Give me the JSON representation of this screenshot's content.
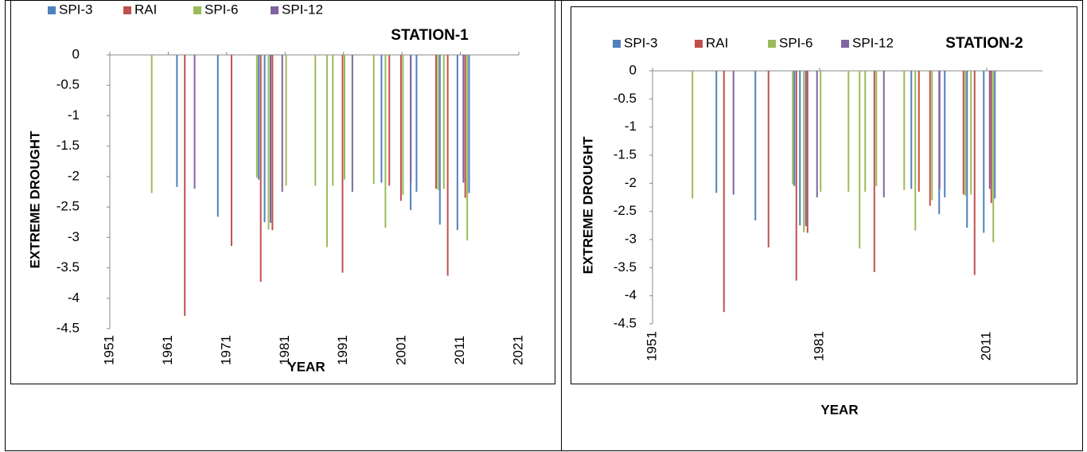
{
  "chart_data": [
    {
      "type": "bar",
      "title": "STATION-1",
      "x_label": "YEAR",
      "y_label": "EXTREME DROUGHT",
      "xlim": [
        1951,
        2021
      ],
      "xticks": [
        1951,
        1961,
        1971,
        1981,
        1991,
        2001,
        2011,
        2021
      ],
      "ylim": [
        0,
        -4.5
      ],
      "yticks": [
        0,
        -0.5,
        -1,
        -1.5,
        -2,
        -2.5,
        -3,
        -3.5,
        -4,
        -4.5
      ],
      "series": [
        {
          "name": "SPI-3",
          "color": "#4f81bd",
          "x": [
            1963,
            1970,
            1977,
            1978,
            1998,
            2003,
            2004,
            2008,
            2011,
            2013
          ],
          "values": [
            -2.17,
            -2.66,
            -2.05,
            -2.75,
            -2.1,
            -2.55,
            -2.25,
            -2.79,
            -2.88,
            -2.27
          ]
        },
        {
          "name": "RAI",
          "color": "#c0504d",
          "x": [
            1964,
            1972,
            1977,
            1979,
            1991,
            1999,
            2001,
            2007,
            2009,
            2012
          ],
          "values": [
            -4.29,
            -3.14,
            -3.73,
            -2.88,
            -3.58,
            -2.15,
            -2.4,
            -2.2,
            -3.63,
            -2.35
          ]
        },
        {
          "name": "SPI-6",
          "color": "#9bbb59",
          "x": [
            1958,
            1976,
            1978,
            1981,
            1986,
            1988,
            1989,
            1991,
            1996,
            1998,
            2001,
            2007,
            2008,
            2012
          ],
          "values": [
            -2.27,
            -2.02,
            -2.87,
            -2.15,
            -2.15,
            -3.16,
            -2.15,
            -2.05,
            -2.12,
            -2.84,
            -2.3,
            -2.22,
            -2.2,
            -3.05
          ]
        },
        {
          "name": "SPI-12",
          "color": "#8064a2",
          "x": [
            1965,
            1978,
            1980,
            1992,
            2002,
            2011
          ],
          "values": [
            -2.2,
            -2.76,
            -2.25,
            -2.25,
            -2.1,
            -2.1
          ]
        }
      ]
    },
    {
      "type": "bar",
      "title": "STATION-2",
      "x_label": "YEAR",
      "y_label": "EXTREME DROUGHT",
      "xlim": [
        1951,
        2021
      ],
      "xticks": [
        1951,
        1981,
        2011
      ],
      "ylim": [
        0,
        -4.5
      ],
      "yticks": [
        0,
        -0.5,
        -1,
        -1.5,
        -2,
        -2.5,
        -3,
        -3.5,
        -4,
        -4.5
      ],
      "series": [
        {
          "name": "SPI-3",
          "color": "#4f81bd",
          "x": [
            1963,
            1970,
            1977,
            1978,
            1998,
            2003,
            2004,
            2008,
            2011,
            2013
          ],
          "values": [
            -2.17,
            -2.66,
            -2.05,
            -2.75,
            -2.1,
            -2.55,
            -2.25,
            -2.79,
            -2.88,
            -2.27
          ]
        },
        {
          "name": "RAI",
          "color": "#c0504d",
          "x": [
            1964,
            1972,
            1977,
            1979,
            1991,
            1999,
            2001,
            2007,
            2009,
            2012
          ],
          "values": [
            -4.29,
            -3.14,
            -3.73,
            -2.88,
            -3.58,
            -2.15,
            -2.4,
            -2.2,
            -3.63,
            -2.35
          ]
        },
        {
          "name": "SPI-6",
          "color": "#9bbb59",
          "x": [
            1958,
            1976,
            1978,
            1981,
            1986,
            1988,
            1989,
            1991,
            1996,
            1998,
            2001,
            2007,
            2008,
            2012
          ],
          "values": [
            -2.27,
            -2.02,
            -2.87,
            -2.15,
            -2.15,
            -3.16,
            -2.15,
            -2.05,
            -2.12,
            -2.84,
            -2.3,
            -2.22,
            -2.2,
            -3.05
          ]
        },
        {
          "name": "SPI-12",
          "color": "#8064a2",
          "x": [
            1965,
            1978,
            1980,
            1992,
            2002,
            2011
          ],
          "values": [
            -2.2,
            -2.76,
            -2.25,
            -2.25,
            -2.1,
            -2.1
          ]
        }
      ]
    }
  ]
}
